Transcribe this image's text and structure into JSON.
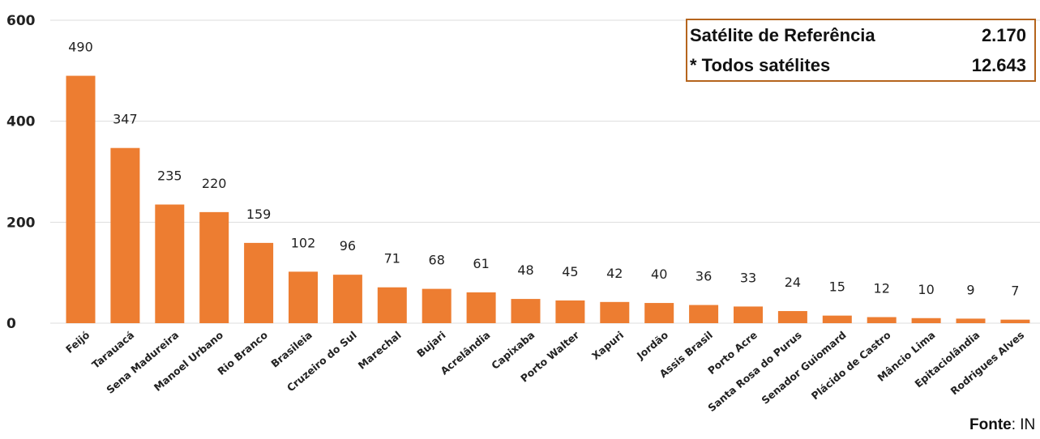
{
  "chart_data": {
    "type": "bar",
    "categories": [
      "Feijó",
      "Tarauacá",
      "Sena Madureira",
      "Manoel Urbano",
      "Rio Branco",
      "Brasileia",
      "Cruzeiro do Sul",
      "Marechal",
      "Bujari",
      "Acrelândia",
      "Capixaba",
      "Porto Walter",
      "Xapuri",
      "Jordão",
      "Assis Brasil",
      "Porto Acre",
      "Santa Rosa do Purus",
      "Senador Guiomard",
      "Plácido de Castro",
      "Mâncio Lima",
      "Epitaciolândia",
      "Rodrigues Alves"
    ],
    "values": [
      490,
      347,
      235,
      220,
      159,
      102,
      96,
      71,
      68,
      61,
      48,
      45,
      42,
      40,
      36,
      33,
      24,
      15,
      12,
      10,
      9,
      7
    ],
    "value_labels": [
      "490",
      "347",
      "235",
      "220",
      "159",
      "102",
      "96",
      "71",
      "68",
      "61",
      "48",
      "45",
      "42",
      "40",
      "36",
      "33",
      "24",
      "15",
      "12",
      "10",
      "9",
      "7"
    ],
    "yticks": [
      0,
      200,
      400,
      600
    ],
    "ytick_labels": [
      "0",
      "200",
      "400",
      "600"
    ],
    "ylim": [
      0,
      600
    ],
    "grid": true,
    "bar_color": "#ed7d31",
    "grid_color": "#dddddd"
  },
  "legend": {
    "rows": [
      {
        "label": "Satélite de Referência",
        "value": "2.170"
      },
      {
        "label": "* Todos satélites",
        "value": "12.643"
      }
    ],
    "border_color": "#b5651d"
  },
  "source": {
    "label": "Fonte",
    "text": ": IN"
  }
}
